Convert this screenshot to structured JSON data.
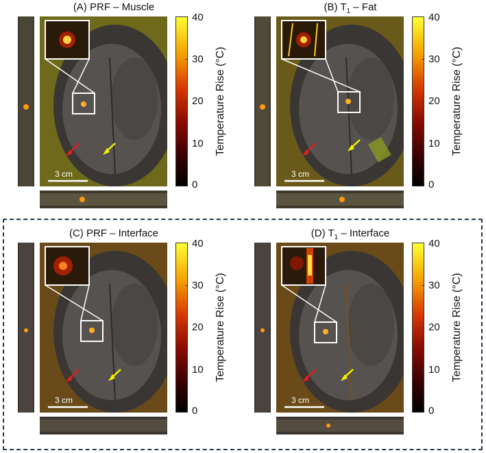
{
  "panels": [
    {
      "title": "(A) PRF – Muscle",
      "scale_bar": "3 cm"
    },
    {
      "title_prefix": "(B) T",
      "title_subscript": "1",
      "title_suffix": " – Fat",
      "scale_bar": "3 cm"
    },
    {
      "title": "(C) PRF – Interface",
      "scale_bar": "3 cm"
    },
    {
      "title_prefix": "(D) T",
      "title_subscript": "1",
      "title_suffix": " – Interface",
      "scale_bar": "3 cm"
    }
  ],
  "colorbar": {
    "label": "Temperature Rise (°C)",
    "ticks": [
      "40",
      "30",
      "20",
      "10",
      "0"
    ]
  },
  "colors": {
    "arrow_red": "#e0201a",
    "arrow_yellow": "#f2f000",
    "frame_dashed": "#1f3550"
  }
}
